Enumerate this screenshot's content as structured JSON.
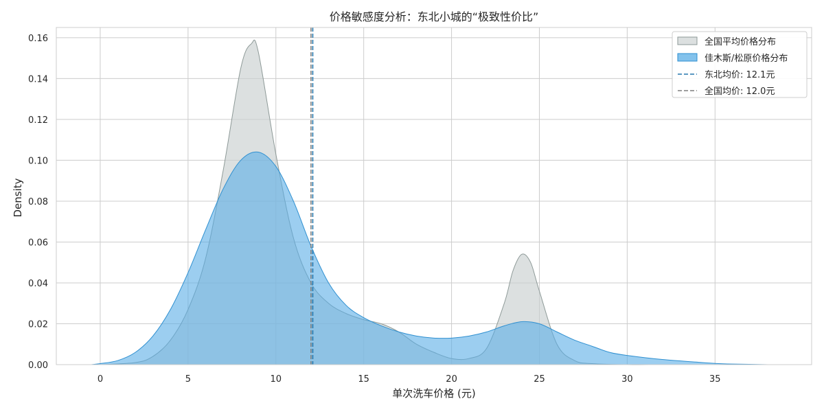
{
  "chart_data": {
    "type": "area",
    "title": "价格敏感度分析：东北小城的“极致性价比”",
    "xlabel": "单次洗车价格 (元)",
    "ylabel": "Density",
    "xlim": [
      -2.5,
      40.5
    ],
    "ylim": [
      0,
      0.165
    ],
    "xticks": [
      0,
      5,
      10,
      15,
      20,
      25,
      30,
      35
    ],
    "yticks": [
      0.0,
      0.02,
      0.04,
      0.06,
      0.08,
      0.1,
      0.12,
      0.14,
      0.16
    ],
    "ytick_labels": [
      "0.00",
      "0.02",
      "0.04",
      "0.06",
      "0.08",
      "0.10",
      "0.12",
      "0.14",
      "0.16"
    ],
    "grid": true,
    "legend_position": "top-right",
    "series": [
      {
        "name": "全国平均价格分布",
        "kind": "area",
        "fill": "#c9d0cf",
        "stroke": "#8d9997",
        "x": [
          0,
          2,
          3,
          4,
          5,
          6,
          7,
          8,
          8.6,
          9,
          10,
          11,
          12,
          13,
          14,
          15,
          16,
          17,
          18,
          19,
          20,
          21,
          22,
          23,
          23.5,
          24,
          24.5,
          25,
          26,
          27,
          28,
          30,
          32,
          35,
          37,
          38
        ],
        "y": [
          0.0,
          0.001,
          0.004,
          0.012,
          0.027,
          0.052,
          0.095,
          0.145,
          0.157,
          0.153,
          0.103,
          0.062,
          0.04,
          0.03,
          0.025,
          0.022,
          0.02,
          0.016,
          0.01,
          0.006,
          0.003,
          0.003,
          0.008,
          0.03,
          0.046,
          0.054,
          0.05,
          0.036,
          0.01,
          0.002,
          0.0005,
          0.0,
          0.0,
          0.0,
          0.0,
          0.0
        ]
      },
      {
        "name": "佳木斯/松原价格分布",
        "kind": "area",
        "fill": "#5aaee6",
        "stroke": "#2e8fd0",
        "x": [
          -0.5,
          0,
          1,
          2,
          3,
          4,
          5,
          6,
          7,
          8,
          9,
          10,
          11,
          12,
          13,
          14,
          15,
          16,
          17,
          18,
          19,
          20,
          21,
          22,
          23,
          24,
          25,
          26,
          27,
          28,
          29,
          30,
          32,
          34,
          35,
          36,
          38
        ],
        "y": [
          0.0,
          0.0005,
          0.002,
          0.006,
          0.014,
          0.027,
          0.045,
          0.066,
          0.086,
          0.1,
          0.104,
          0.097,
          0.08,
          0.058,
          0.04,
          0.029,
          0.023,
          0.019,
          0.016,
          0.014,
          0.013,
          0.013,
          0.014,
          0.016,
          0.019,
          0.021,
          0.02,
          0.016,
          0.012,
          0.009,
          0.006,
          0.0045,
          0.0025,
          0.0012,
          0.0006,
          0.0003,
          0.0
        ]
      },
      {
        "name": "东北均价: 12.1元",
        "kind": "vline",
        "x": 12.1,
        "color": "#2477ad"
      },
      {
        "name": "全国均价: 12.0元",
        "kind": "vline",
        "x": 12.0,
        "color": "#7f7f7f"
      }
    ]
  }
}
